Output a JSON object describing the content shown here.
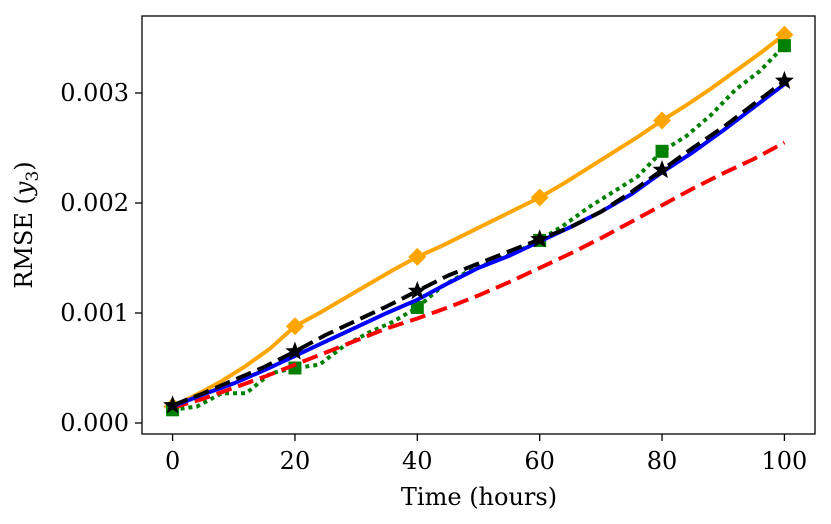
{
  "chart_data": {
    "type": "line",
    "title": "",
    "xlabel": "Time (hours)",
    "ylabel_prefix": "RMSE (",
    "ylabel_var": "y",
    "ylabel_sub": "3",
    "ylabel_suffix": ")",
    "xlim": [
      -5,
      105
    ],
    "ylim": [
      -0.0001,
      0.0037
    ],
    "xticks": [
      0,
      20,
      40,
      60,
      80,
      100
    ],
    "xtick_labels": [
      "0",
      "20",
      "40",
      "60",
      "80",
      "100"
    ],
    "yticks": [
      0.0,
      0.001,
      0.002,
      0.003
    ],
    "ytick_labels": [
      "0.000",
      "0.001",
      "0.002",
      "0.003"
    ],
    "grid": false,
    "series": [
      {
        "name": "orange-diamond",
        "color": "#ffa500",
        "dash": "solid",
        "marker": "diamond",
        "x": [
          0,
          4,
          8,
          12,
          16,
          20,
          24,
          28,
          32,
          36,
          40,
          44,
          48,
          52,
          56,
          60,
          64,
          68,
          72,
          76,
          80,
          84,
          88,
          92,
          96,
          100
        ],
        "y": [
          0.00015,
          0.00026,
          0.00038,
          0.00052,
          0.00068,
          0.00088,
          0.001,
          0.00113,
          0.00126,
          0.00139,
          0.00151,
          0.00161,
          0.00172,
          0.00183,
          0.00194,
          0.00205,
          0.00218,
          0.00232,
          0.00246,
          0.0026,
          0.00275,
          0.00289,
          0.00304,
          0.0032,
          0.00336,
          0.00353
        ],
        "marker_x": [
          0,
          20,
          40,
          60,
          80,
          100
        ],
        "marker_y": [
          0.00015,
          0.00088,
          0.00151,
          0.00205,
          0.00275,
          0.00353
        ]
      },
      {
        "name": "green-square",
        "color": "#008000",
        "dash": "dotted",
        "marker": "square",
        "x": [
          0,
          4,
          8,
          12,
          16,
          20,
          24,
          28,
          32,
          36,
          40,
          44,
          48,
          52,
          56,
          60,
          64,
          68,
          72,
          76,
          80,
          84,
          88,
          92,
          96,
          100
        ],
        "y": [
          0.00012,
          0.00015,
          0.00027,
          0.00027,
          0.00045,
          0.0005,
          0.00053,
          0.0007,
          0.00082,
          0.00092,
          0.00105,
          0.00124,
          0.00137,
          0.00146,
          0.00155,
          0.00166,
          0.0018,
          0.00196,
          0.0021,
          0.00224,
          0.00247,
          0.00261,
          0.0028,
          0.00303,
          0.0032,
          0.00343
        ],
        "marker_x": [
          0,
          20,
          40,
          60,
          80,
          100
        ],
        "marker_y": [
          0.00012,
          0.0005,
          0.00105,
          0.00166,
          0.00247,
          0.00343
        ]
      },
      {
        "name": "red-dashed",
        "color": "#ff0000",
        "dash": "dashed",
        "marker": "none",
        "x": [
          0,
          5,
          10,
          15,
          20,
          25,
          30,
          35,
          40,
          45,
          50,
          55,
          60,
          65,
          70,
          75,
          80,
          85,
          90,
          95,
          100
        ],
        "y": [
          0.00014,
          0.00022,
          0.00032,
          0.00042,
          0.00053,
          0.00064,
          0.00075,
          0.00086,
          0.00095,
          0.00105,
          0.00116,
          0.00128,
          0.00141,
          0.00154,
          0.00168,
          0.00183,
          0.00198,
          0.00213,
          0.00227,
          0.0024,
          0.00255
        ],
        "marker_x": [],
        "marker_y": []
      },
      {
        "name": "blue-solid",
        "color": "#0000ff",
        "dash": "solid",
        "marker": "none",
        "x": [
          0,
          5,
          10,
          15,
          20,
          25,
          30,
          35,
          40,
          45,
          50,
          55,
          60,
          65,
          70,
          75,
          80,
          85,
          90,
          95,
          100
        ],
        "y": [
          0.00015,
          0.00026,
          0.00036,
          0.00048,
          0.00061,
          0.00074,
          0.00087,
          0.001,
          0.00112,
          0.00127,
          0.00141,
          0.00152,
          0.00165,
          0.00178,
          0.00192,
          0.00208,
          0.00228,
          0.00246,
          0.00266,
          0.00287,
          0.00308
        ],
        "marker_x": [],
        "marker_y": []
      },
      {
        "name": "black-star",
        "color": "#000000",
        "dash": "dashed",
        "marker": "star",
        "x": [
          0,
          5,
          10,
          15,
          20,
          25,
          30,
          35,
          40,
          45,
          50,
          55,
          60,
          65,
          70,
          75,
          80,
          85,
          90,
          95,
          100
        ],
        "y": [
          0.00016,
          0.00027,
          0.00039,
          0.00051,
          0.00065,
          0.0008,
          0.00093,
          0.00106,
          0.0012,
          0.00134,
          0.00145,
          0.00156,
          0.00167,
          0.00178,
          0.00192,
          0.0021,
          0.0023,
          0.0025,
          0.00269,
          0.0029,
          0.00311
        ],
        "marker_x": [
          0,
          20,
          40,
          60,
          80,
          100
        ],
        "marker_y": [
          0.00016,
          0.00065,
          0.0012,
          0.00167,
          0.0023,
          0.00311
        ]
      }
    ]
  }
}
